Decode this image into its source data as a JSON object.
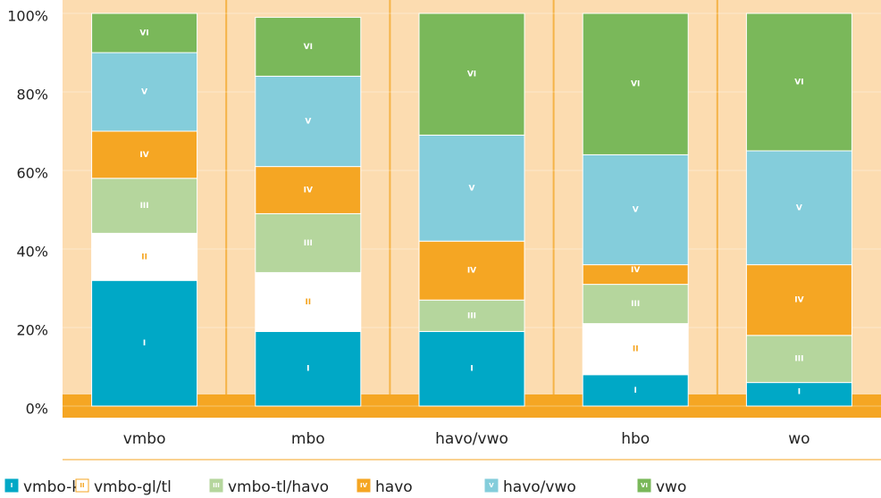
{
  "chart_data": {
    "type": "stacked_bar",
    "categories": [
      "vmbo",
      "mbo",
      "havo/vwo",
      "hbo",
      "wo"
    ],
    "series": [
      {
        "name": "vmbo-kl",
        "marker": "I",
        "color": "#00a8c6",
        "values": [
          32,
          19,
          19,
          8,
          6
        ]
      },
      {
        "name": "vmbo-gl/tl",
        "marker": "II",
        "color": "#ffffff",
        "values": [
          12,
          15,
          0,
          13,
          0
        ]
      },
      {
        "name": "vmbo-tl/havo",
        "marker": "III",
        "color": "#b5d69d",
        "values": [
          14,
          15,
          8,
          10,
          12
        ]
      },
      {
        "name": "havo",
        "marker": "IV",
        "color": "#f5a623",
        "values": [
          12,
          12,
          15,
          5,
          18
        ]
      },
      {
        "name": "havo/vwo",
        "marker": "V",
        "color": "#84cddb",
        "values": [
          20,
          23,
          27,
          28,
          29
        ]
      },
      {
        "name": "vwo",
        "marker": "VI",
        "color": "#7ab85a",
        "values": [
          10,
          15,
          31,
          36,
          35
        ]
      }
    ],
    "ylim": [
      0,
      100
    ],
    "yticks": [
      {
        "value": 0,
        "label": "0%"
      },
      {
        "value": 20,
        "label": "20%"
      },
      {
        "value": 40,
        "label": "40%"
      },
      {
        "value": 60,
        "label": "60%"
      },
      {
        "value": 80,
        "label": "80%"
      },
      {
        "value": 100,
        "label": "100%"
      }
    ],
    "legend": "bottom"
  }
}
